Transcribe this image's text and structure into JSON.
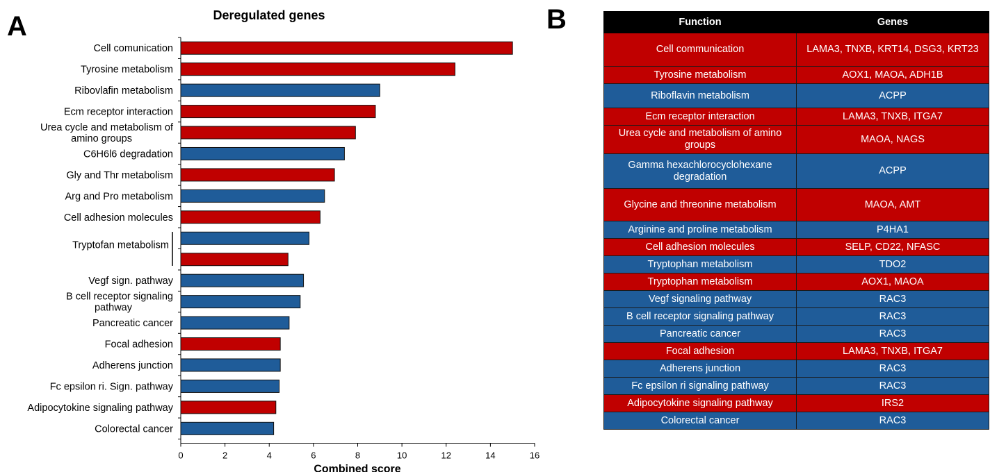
{
  "panel_a_letter": "A",
  "panel_b_letter": "B",
  "colors": {
    "red": "#c00000",
    "blue": "#1f5c99"
  },
  "chart_data": {
    "type": "bar",
    "orientation": "horizontal",
    "title": "Deregulated genes",
    "xlabel": "Combined score",
    "ylabel": "",
    "xlim": [
      0,
      16
    ],
    "xticks": [
      0,
      2,
      4,
      6,
      8,
      10,
      12,
      14,
      16
    ],
    "grid": false,
    "legend": "none",
    "bars": [
      {
        "label": "Cell comunication",
        "value": 15.0,
        "color": "red"
      },
      {
        "label": "Tyrosine metabolism",
        "value": 12.4,
        "color": "red"
      },
      {
        "label": "Ribovlafin metabolism",
        "value": 9.0,
        "color": "blue"
      },
      {
        "label": "Ecm receptor interaction",
        "value": 8.8,
        "color": "red"
      },
      {
        "label": "Urea cycle and metabolism of amino groups",
        "value": 7.9,
        "color": "red"
      },
      {
        "label": "C6H6l6 degradation",
        "value": 7.4,
        "color": "blue"
      },
      {
        "label": "Gly and Thr metabolism",
        "value": 6.95,
        "color": "red"
      },
      {
        "label": "Arg and Pro metabolism",
        "value": 6.5,
        "color": "blue"
      },
      {
        "label": "Cell adhesion molecules",
        "value": 6.3,
        "color": "red"
      },
      {
        "label": "Tryptofan metabolism",
        "value": 5.8,
        "color": "blue"
      },
      {
        "label": "",
        "value": 4.85,
        "color": "red"
      },
      {
        "label": "Vegf sign. pathway",
        "value": 5.55,
        "color": "blue"
      },
      {
        "label": "B cell receptor signaling pathway",
        "value": 5.4,
        "color": "blue"
      },
      {
        "label": "Pancreatic cancer",
        "value": 4.9,
        "color": "blue"
      },
      {
        "label": "Focal adhesion",
        "value": 4.5,
        "color": "red"
      },
      {
        "label": "Adherens junction",
        "value": 4.5,
        "color": "blue"
      },
      {
        "label": "Fc epsilon ri. Sign. pathway",
        "value": 4.45,
        "color": "blue"
      },
      {
        "label": "Adipocytokine signaling pathway",
        "value": 4.3,
        "color": "red"
      },
      {
        "label": "Colorectal cancer",
        "value": 4.2,
        "color": "blue"
      }
    ]
  },
  "table": {
    "headers": [
      "Function",
      "Genes"
    ],
    "rows": [
      {
        "function": "Cell communication",
        "genes": "LAMA3, TNXB, KRT14, DSG3, KRT23",
        "color": "red"
      },
      {
        "function": "Tyrosine metabolism",
        "genes": "AOX1, MAOA, ADH1B",
        "color": "red"
      },
      {
        "function": "Riboflavin metabolism",
        "genes": "ACPP",
        "color": "blue"
      },
      {
        "function": "Ecm receptor interaction",
        "genes": "LAMA3, TNXB, ITGA7",
        "color": "red"
      },
      {
        "function": "Urea cycle and metabolism of amino groups",
        "genes": "MAOA, NAGS",
        "color": "red"
      },
      {
        "function": "Gamma hexachlorocyclohexane degradation",
        "genes": "ACPP",
        "color": "blue"
      },
      {
        "function": "Glycine and threonine metabolism",
        "genes": "MAOA, AMT",
        "color": "red"
      },
      {
        "function": "Arginine and proline metabolism",
        "genes": "P4HA1",
        "color": "blue"
      },
      {
        "function": "Cell adhesion molecules",
        "genes": "SELP, CD22, NFASC",
        "color": "red"
      },
      {
        "function": "Tryptophan metabolism",
        "genes": "TDO2",
        "color": "blue"
      },
      {
        "function": "Tryptophan metabolism",
        "genes": "AOX1, MAOA",
        "color": "red"
      },
      {
        "function": "Vegf signaling pathway",
        "genes": "RAC3",
        "color": "blue"
      },
      {
        "function": "B cell receptor signaling pathway",
        "genes": "RAC3",
        "color": "blue"
      },
      {
        "function": "Pancreatic cancer",
        "genes": "RAC3",
        "color": "blue"
      },
      {
        "function": "Focal adhesion",
        "genes": "LAMA3, TNXB, ITGA7",
        "color": "red"
      },
      {
        "function": "Adherens junction",
        "genes": "RAC3",
        "color": "blue"
      },
      {
        "function": "Fc epsilon ri signaling pathway",
        "genes": "RAC3",
        "color": "blue"
      },
      {
        "function": "Adipocytokine signaling pathway",
        "genes": "IRS2",
        "color": "red"
      },
      {
        "function": "Colorectal cancer",
        "genes": "RAC3",
        "color": "blue"
      }
    ]
  }
}
